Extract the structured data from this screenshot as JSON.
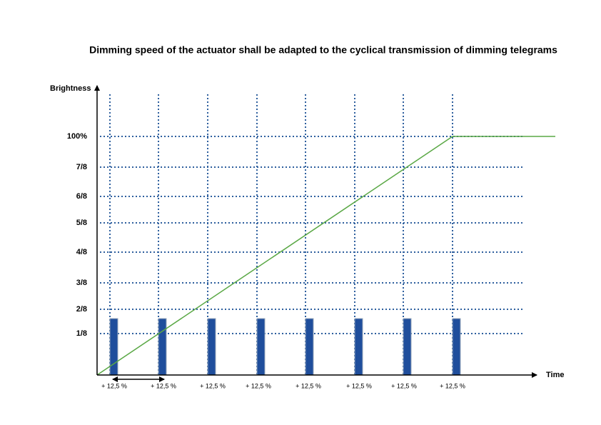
{
  "title": "Dimming speed of the actuator shall be adapted to the cyclical transmission of dimming telegrams",
  "y_axis_label": "Brightness",
  "x_axis_label": "Time",
  "y_levels": [
    "100%",
    "7/8",
    "6/8",
    "5/8",
    "4/8",
    "3/8",
    "2/8",
    "1/8"
  ],
  "steps": [
    "+ 12,5 %",
    "+ 12,5 %",
    "+ 12,5 %",
    "+ 12,5 %",
    "+ 12,5 %",
    "+ 12,5 %",
    "+ 12,5 %",
    "+ 12,5 %"
  ]
}
